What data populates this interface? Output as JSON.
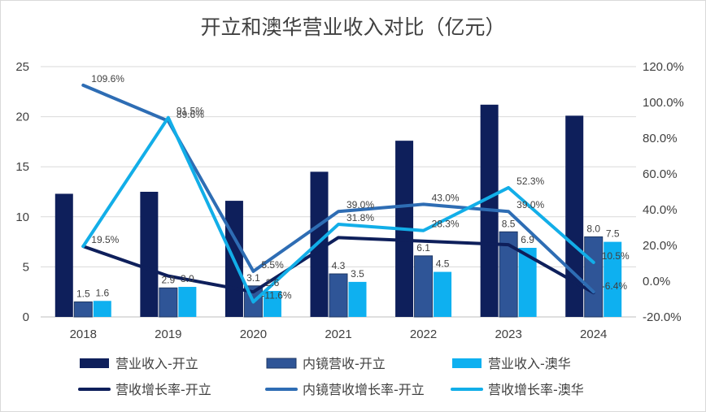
{
  "chart_data": {
    "type": "bar",
    "title": "开立和澳华营业收入对比（亿元）",
    "categories": [
      "2018",
      "2019",
      "2020",
      "2021",
      "2022",
      "2023",
      "2024"
    ],
    "y_left": {
      "min": 0,
      "max": 25,
      "ticks": [
        "0",
        "5",
        "10",
        "15",
        "20",
        "25"
      ]
    },
    "y_right": {
      "min": -20,
      "max": 120,
      "ticks": [
        "-20.0%",
        "0.0%",
        "20.0%",
        "40.0%",
        "60.0%",
        "80.0%",
        "100.0%",
        "120.0%"
      ]
    },
    "grid": true,
    "legend_position": "bottom",
    "bar_series": [
      {
        "name": "营业收入-开立",
        "color": "#0e1f5b",
        "values": [
          12.3,
          12.5,
          11.6,
          14.5,
          17.6,
          21.2,
          20.1
        ],
        "labels": [
          "",
          "",
          "",
          "",
          "",
          "",
          ""
        ]
      },
      {
        "name": "内镜营收-开立",
        "color": "#2f5597",
        "values": [
          1.5,
          2.9,
          3.1,
          4.3,
          6.1,
          8.5,
          8.0
        ],
        "labels": [
          "1.5",
          "2.9",
          "3.1",
          "4.3",
          "6.1",
          "8.5",
          "8.0"
        ]
      },
      {
        "name": "营业收入-澳华",
        "color": "#0eb0f0",
        "values": [
          1.6,
          3.0,
          2.6,
          3.5,
          4.5,
          6.9,
          7.5
        ],
        "labels": [
          "1.6",
          "3.0",
          "2.6",
          "3.5",
          "4.5",
          "6.9",
          "7.5"
        ]
      }
    ],
    "line_series": [
      {
        "name": "营收增长率-开立",
        "color": "#0e1f5b",
        "values": [
          19.5,
          2.9,
          -6.0,
          24.4,
          22.4,
          20.4,
          -6.4
        ],
        "labels": [
          "19.5%",
          "",
          "",
          "",
          "",
          "",
          "-6.4%"
        ]
      },
      {
        "name": "内镜营收增长率-开立",
        "color": "#2e6db4",
        "values": [
          109.6,
          89.6,
          5.5,
          39.0,
          43.0,
          39.0,
          -6.0
        ],
        "labels": [
          "109.6%",
          "89.6%",
          "5.5%",
          "39.0%",
          "43.0%",
          "39.0%",
          ""
        ]
      },
      {
        "name": "营收增长率-澳华",
        "color": "#12aee8",
        "values": [
          19.5,
          91.5,
          -11.6,
          31.8,
          28.3,
          52.3,
          10.5
        ],
        "labels": [
          "",
          "91.5%",
          "-11.6%",
          "31.8%",
          "28.3%",
          "52.3%",
          "10.5%"
        ]
      }
    ]
  }
}
